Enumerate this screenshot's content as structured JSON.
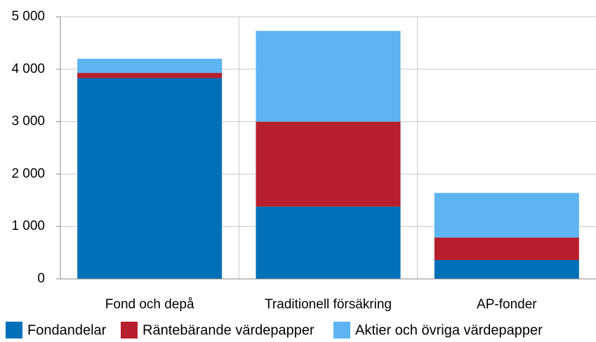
{
  "chart_data": {
    "type": "stacked-bar",
    "categories": [
      "Fond och depå",
      "Traditionell försäkring",
      "AP-fonder"
    ],
    "series": [
      {
        "name": "Fondandelar",
        "color": "#0070b8",
        "values": [
          3830,
          1380,
          360
        ]
      },
      {
        "name": "Räntebärande värdepapper",
        "color": "#b71f2e",
        "values": [
          100,
          1620,
          430
        ]
      },
      {
        "name": "Aktier och övriga värdepapper",
        "color": "#5db4f0",
        "values": [
          270,
          1730,
          850
        ]
      }
    ],
    "ylim": [
      0,
      5000
    ],
    "yticks": [
      0,
      {
        "value": 1000,
        "label": "1 000"
      },
      {
        "value": 2000,
        "label": "2 000"
      },
      {
        "value": 3000,
        "label": "3 000"
      },
      {
        "value": 4000,
        "label": "4 000"
      },
      {
        "value": 5000,
        "label": "5 000"
      }
    ],
    "grid": true
  }
}
